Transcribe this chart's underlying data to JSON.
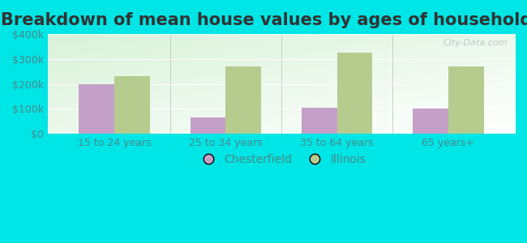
{
  "title": "Breakdown of mean house values by ages of householders",
  "categories": [
    "15 to 24 years",
    "25 to 34 years",
    "35 to 64 years",
    "65 years+"
  ],
  "chesterfield_values": [
    200000,
    65000,
    105000,
    100000
  ],
  "illinois_values": [
    230000,
    270000,
    325000,
    270000
  ],
  "chesterfield_color": "#c4a0c8",
  "illinois_color": "#b5cc8e",
  "background_color": "#00e5e5",
  "ylim": [
    0,
    400000
  ],
  "yticks": [
    0,
    100000,
    200000,
    300000,
    400000
  ],
  "ytick_labels": [
    "$0",
    "$100k",
    "$200k",
    "$300k",
    "$400k"
  ],
  "bar_width": 0.32,
  "legend_labels": [
    "Chesterfield",
    "Illinois"
  ],
  "watermark": "City-Data.com",
  "title_fontsize": 15,
  "tick_fontsize": 9,
  "legend_fontsize": 10,
  "tick_color": "#4a8a8a",
  "title_color": "#333333"
}
